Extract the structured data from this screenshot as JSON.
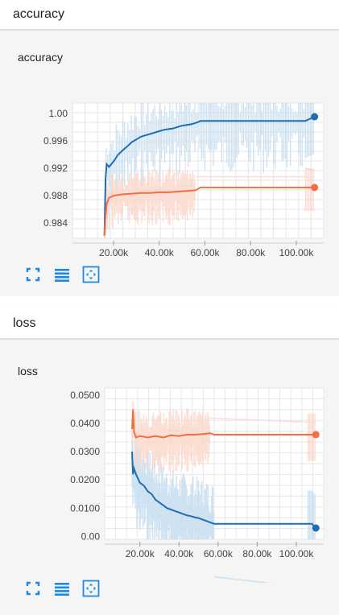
{
  "sections": [
    {
      "header": "accuracy",
      "card_title": "accuracy"
    },
    {
      "header": "loss",
      "card_title": "loss"
    }
  ],
  "colors": {
    "blue": "#1f6db3",
    "blue_light": "#c6def0",
    "orange": "#f46e43",
    "orange_light": "#fbd9cd",
    "tool_blue": "#1e88e5"
  },
  "icons": [
    "fullscreen-icon",
    "toggle-log-scale-icon",
    "fit-domain-icon"
  ],
  "chart_data": [
    {
      "type": "line",
      "title": "accuracy",
      "xlabel": "",
      "ylabel": "",
      "x_ticks": [
        20000,
        40000,
        60000,
        80000,
        100000
      ],
      "x_tick_labels": [
        "20.00k",
        "40.00k",
        "60.00k",
        "80.00k",
        "100.00k"
      ],
      "y_ticks": [
        0.984,
        0.988,
        0.992,
        0.996,
        1.0
      ],
      "y_tick_labels": [
        "0.984",
        "0.988",
        "0.992",
        "0.996",
        "1.00"
      ],
      "xlim": [
        2000,
        112000
      ],
      "ylim": [
        0.9818,
        1.0015
      ],
      "grid": true,
      "series": [
        {
          "color": "#1f6db3",
          "x": [
            16000,
            16500,
            17000,
            18000,
            20000,
            22000,
            24000,
            26000,
            28000,
            30000,
            32000,
            34000,
            36000,
            38000,
            40000,
            42000,
            44000,
            46000,
            48000,
            50000,
            52000,
            54000,
            56000,
            57500,
            58000,
            104000,
            106000,
            108000
          ],
          "y": [
            0.9822,
            0.9905,
            0.9926,
            0.9922,
            0.993,
            0.994,
            0.9946,
            0.9952,
            0.9958,
            0.9962,
            0.9966,
            0.9968,
            0.997,
            0.9972,
            0.9974,
            0.9976,
            0.9977,
            0.9978,
            0.998,
            0.9982,
            0.9983,
            0.9984,
            0.9986,
            0.9988,
            0.9989,
            0.9989,
            0.9992,
            0.9995
          ]
        },
        {
          "color": "#f46e43",
          "x": [
            16000,
            16500,
            17000,
            18000,
            20000,
            24000,
            28000,
            32000,
            36000,
            40000,
            44000,
            48000,
            52000,
            56000,
            58000,
            108000
          ],
          "y": [
            0.9822,
            0.985,
            0.9868,
            0.9877,
            0.988,
            0.9882,
            0.9883,
            0.9884,
            0.9884,
            0.9885,
            0.9885,
            0.9886,
            0.9887,
            0.9888,
            0.9892,
            0.9892
          ]
        }
      ]
    },
    {
      "type": "line",
      "title": "loss",
      "xlabel": "",
      "ylabel": "",
      "x_ticks": [
        20000,
        40000,
        60000,
        80000,
        100000
      ],
      "x_tick_labels": [
        "20.00k",
        "40.00k",
        "60.00k",
        "80.00k",
        "100.00k"
      ],
      "y_ticks": [
        0.0,
        0.01,
        0.02,
        0.03,
        0.04,
        0.05
      ],
      "y_tick_labels": [
        "0.00",
        "0.0100",
        "0.0200",
        "0.0300",
        "0.0400",
        "0.0500"
      ],
      "xlim": [
        2000,
        114000
      ],
      "ylim": [
        -0.001,
        0.0525
      ],
      "grid": true,
      "series": [
        {
          "color": "#1f6db3",
          "x": [
            16000,
            16500,
            17000,
            18000,
            20000,
            22000,
            24000,
            26000,
            28000,
            30000,
            32000,
            34000,
            36000,
            38000,
            40000,
            42000,
            44000,
            46000,
            48000,
            50000,
            52000,
            54000,
            56000,
            58000,
            108000,
            110000
          ],
          "y": [
            0.03,
            0.022,
            0.024,
            0.022,
            0.019,
            0.018,
            0.016,
            0.015,
            0.013,
            0.012,
            0.011,
            0.01,
            0.0095,
            0.009,
            0.0085,
            0.008,
            0.0075,
            0.0072,
            0.0068,
            0.0065,
            0.006,
            0.0055,
            0.005,
            0.0045,
            0.0045,
            0.003
          ]
        },
        {
          "color": "#f46e43",
          "x": [
            16000,
            16500,
            17000,
            18000,
            20000,
            24000,
            28000,
            32000,
            36000,
            40000,
            44000,
            48000,
            52000,
            56000,
            58000,
            110000
          ],
          "y": [
            0.038,
            0.045,
            0.037,
            0.035,
            0.0355,
            0.035,
            0.0355,
            0.035,
            0.0358,
            0.0355,
            0.036,
            0.036,
            0.0362,
            0.0365,
            0.036,
            0.036
          ]
        }
      ]
    }
  ]
}
